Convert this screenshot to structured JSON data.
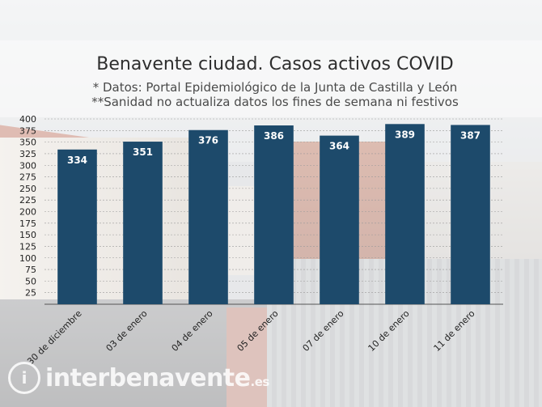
{
  "chart_data": {
    "type": "bar",
    "title": "Benavente ciudad. Casos activos COVID",
    "subtitle_lines": [
      "* Datos: Portal Epidemiológico de la Junta de Castilla y León",
      "**Sanidad no actualiza datos los fines de semana ni festivos"
    ],
    "categories": [
      "30 de diciembre",
      "03 de enero",
      "04 de enero",
      "05 de enero",
      "07 de enero",
      "10 de enero",
      "11 de enero"
    ],
    "values": [
      334,
      351,
      376,
      386,
      364,
      389,
      387
    ],
    "ylim": [
      0,
      400
    ],
    "yticks": [
      25,
      50,
      75,
      100,
      125,
      150,
      175,
      200,
      225,
      250,
      275,
      300,
      325,
      350,
      375,
      400
    ],
    "grid": true,
    "bar_color": "#1d4a6b",
    "data_labels": true
  },
  "watermark": {
    "text": "interbenavente",
    "suffix": ".es"
  }
}
